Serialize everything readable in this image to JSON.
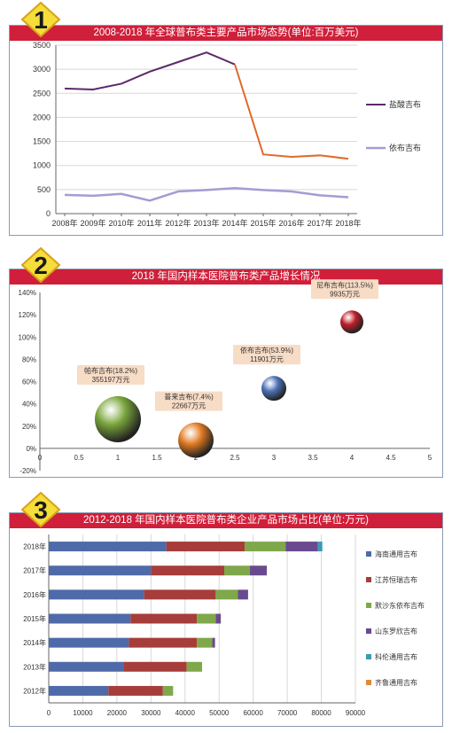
{
  "colors": {
    "title_bg": "#d01f3a",
    "badge_fill": "#f5dd3a",
    "badge_stroke": "#d8a21a",
    "series_purple": "#5b2a6b",
    "series_orange": "#e06a2a",
    "series_lavender": "#a79bd4",
    "bar_blue": "#4f6aa8",
    "bar_red": "#a63d3a",
    "bar_green": "#7ea84a",
    "bar_purple": "#6a4a8e",
    "bar_teal": "#3a9bb0",
    "bar_orange": "#e0883a"
  },
  "section1": {
    "badge": "1",
    "title": "2008-2018 年全球普布类主要产品市场态势(单位:百万美元)",
    "chart_data": {
      "type": "line",
      "x": [
        "2008年",
        "2009年",
        "2010年",
        "2011年",
        "2012年",
        "2013年",
        "2014年",
        "2015年",
        "2016年",
        "2017年",
        "2018年"
      ],
      "ylim": [
        0,
        3500
      ],
      "yticks": [
        "0",
        "500",
        "1000",
        "1500",
        "2000",
        "2500",
        "3000",
        "3500"
      ],
      "grid": true,
      "legend": "right",
      "series": [
        {
          "name": "盐酸吉布",
          "values": [
            2600,
            2580,
            2700,
            2950,
            3150,
            3350,
            3100,
            1230,
            1180,
            1210,
            1140
          ]
        },
        {
          "name": "依布吉布",
          "values": [
            390,
            370,
            410,
            270,
            460,
            490,
            530,
            490,
            460,
            380,
            340
          ]
        }
      ]
    }
  },
  "section2": {
    "badge": "2",
    "title": "2018 年国内样本医院普布类产品增长情况",
    "chart_data": {
      "type": "scatter",
      "xlim": [
        0,
        5
      ],
      "xticks": [
        "0",
        "0.5",
        "1",
        "1.5",
        "2",
        "2.5",
        "3",
        "3.5",
        "4",
        "4.5",
        "5"
      ],
      "ylim": [
        -20,
        140
      ],
      "yticks": [
        "-20%",
        "0%",
        "20%",
        "40%",
        "60%",
        "80%",
        "100%",
        "120%",
        "140%"
      ],
      "points": [
        {
          "x": 1,
          "y": 18.2,
          "label_1": "帕布吉布(18.2%)",
          "label_2": "355197万元",
          "color": "#7aa63c"
        },
        {
          "x": 2,
          "y": 7.4,
          "label_1": "普来吉布(7.4%)",
          "label_2": "22667万元",
          "color": "#e07a22"
        },
        {
          "x": 3,
          "y": 53.9,
          "label_1": "依布吉布(53.9%)",
          "label_2": "11901万元",
          "color": "#4e73b8"
        },
        {
          "x": 4,
          "y": 113.5,
          "label_1": "尼布吉布(113.5%)",
          "label_2": "9935万元",
          "color": "#c0202a"
        }
      ]
    }
  },
  "section3": {
    "badge": "3",
    "title": "2012-2018 年国内样本医院普布类企业产品市场占比(单位:万元)",
    "chart_data": {
      "type": "bar",
      "orientation": "horizontal",
      "stacked": true,
      "categories": [
        "2018年",
        "2017年",
        "2016年",
        "2015年",
        "2014年",
        "2013年",
        "2012年"
      ],
      "xlim": [
        0,
        90000
      ],
      "xticks": [
        "0",
        "10000",
        "20000",
        "30000",
        "40000",
        "50000",
        "60000",
        "70000",
        "80000",
        "90000"
      ],
      "legend": "right",
      "series": [
        {
          "name": "海南通用吉布",
          "values": [
            34500,
            30000,
            28000,
            24000,
            23500,
            22000,
            17500
          ]
        },
        {
          "name": "江苏恒瑞吉布",
          "values": [
            23000,
            21500,
            21000,
            19500,
            20000,
            18500,
            16000
          ]
        },
        {
          "name": "默沙东依布吉布",
          "values": [
            12000,
            7500,
            6500,
            5500,
            4500,
            4500,
            3000
          ]
        },
        {
          "name": "山东罗欣吉布",
          "values": [
            9500,
            5000,
            3000,
            1500,
            800,
            0,
            0
          ]
        },
        {
          "name": "科伦通用吉布",
          "values": [
            1300,
            0,
            0,
            0,
            0,
            0,
            0
          ]
        },
        {
          "name": "齐鲁通用吉布",
          "values": [
            0,
            0,
            0,
            0,
            0,
            0,
            0
          ]
        }
      ]
    }
  }
}
